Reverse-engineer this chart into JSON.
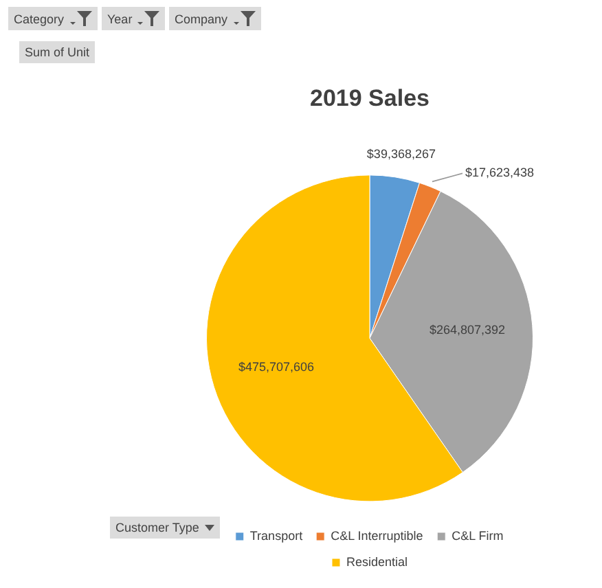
{
  "chart_data": {
    "type": "pie",
    "title": "2019 Sales",
    "categories": [
      "Transport",
      "C&L Interruptible",
      "C&L Firm",
      "Residential"
    ],
    "values": [
      39368267,
      17623438,
      264807392,
      475707606
    ],
    "colors": [
      "#5b9bd5",
      "#ed7d31",
      "#a5a5a5",
      "#ffc000"
    ],
    "value_labels": [
      "$39,368,267",
      "$17,623,438",
      "$264,807,392",
      "$475,707,606"
    ],
    "legend": "bottom",
    "annotations": [
      "Category",
      "Year",
      "Company",
      "Sum of Unit",
      "Customer Type"
    ]
  }
}
